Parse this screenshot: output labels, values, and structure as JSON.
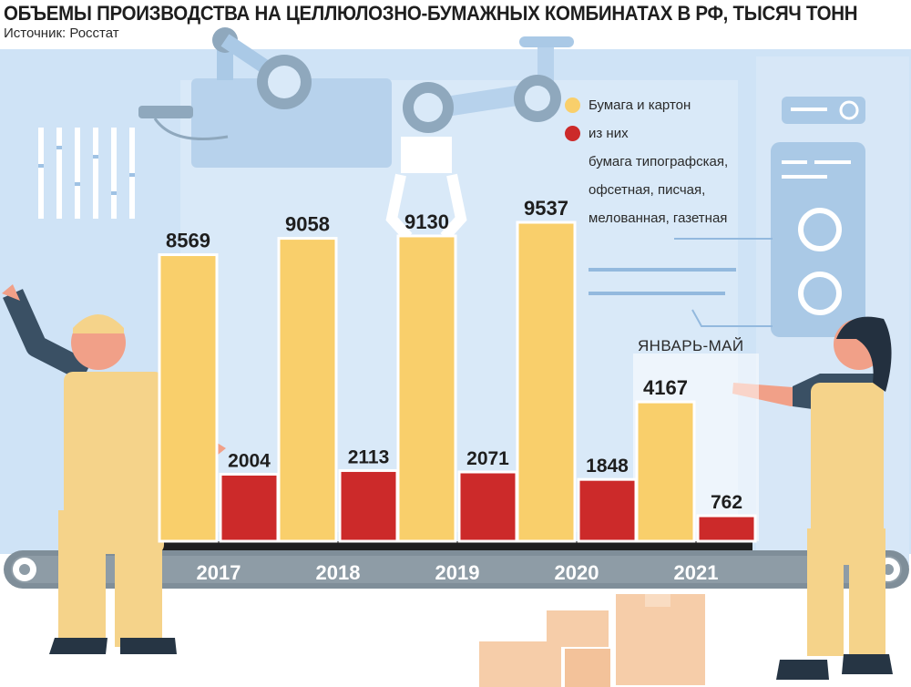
{
  "header": {
    "title": "ОБЪЕМЫ ПРОИЗВОДСТВА НА ЦЕЛЛЮЛОЗНО-БУМАЖНЫХ КОМБИНАТАХ В РФ, ТЫСЯЧ ТОНН",
    "source": "Источник: Росстат"
  },
  "legend": {
    "item1": "Бумага и картон",
    "item2_line1": "из них",
    "item2_line2": "бумага типографская,",
    "item2_line3": "офсетная, писчая,",
    "item2_line4": "мелованная, газетная"
  },
  "period_note": "ЯНВАРЬ-МАЙ",
  "colors": {
    "paper_cardboard": "#f9cf6b",
    "printing_paper": "#cc2a2a",
    "belt": "#7f8e99"
  },
  "chart_data": {
    "type": "bar",
    "title": "ОБЪЕМЫ ПРОИЗВОДСТВА НА ЦЕЛЛЮЛОЗНО-БУМАЖНЫХ КОМБИНАТАХ В РФ, ТЫСЯЧ ТОНН",
    "categories": [
      "2017",
      "2018",
      "2019",
      "2020",
      "2021"
    ],
    "series": [
      {
        "name": "Бумага и картон",
        "values": [
          8569,
          9058,
          9130,
          9537,
          4167
        ],
        "labels": [
          "8569",
          "9058",
          "9130",
          "9537",
          "4167"
        ]
      },
      {
        "name": "из них бумага типографская, офсетная, писчая, мелованная, газетная",
        "values": [
          2004,
          2113,
          2071,
          1848,
          762
        ],
        "labels": [
          "2004",
          "2113",
          "2071",
          "1848",
          "762"
        ]
      }
    ],
    "annotations": [
      "ЯНВАРЬ-МАЙ"
    ],
    "ylim": [
      0,
      9537
    ],
    "grid": false,
    "legend": "top-right"
  }
}
